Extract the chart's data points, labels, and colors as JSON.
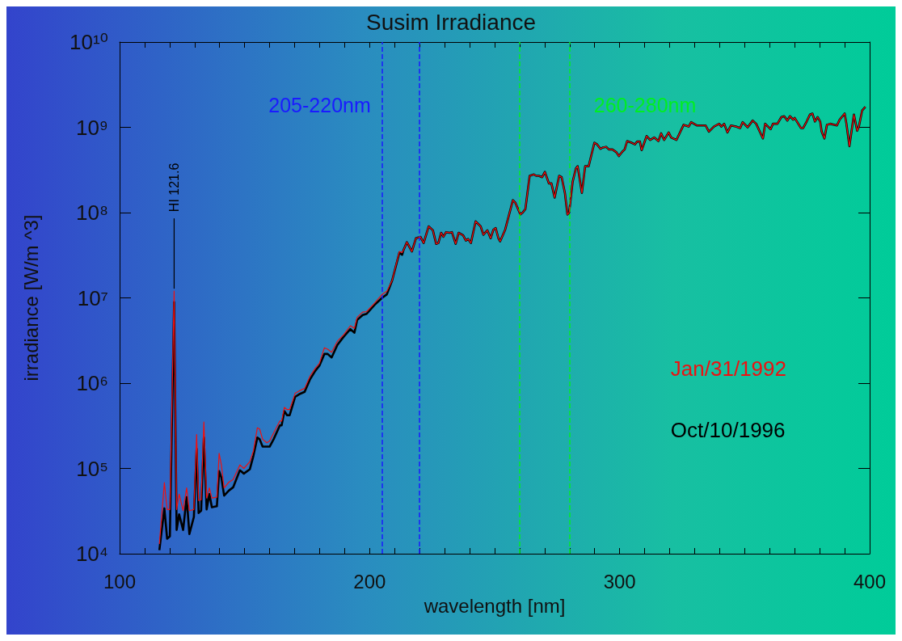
{
  "chart_data": {
    "type": "line",
    "title": "Susim Irradiance",
    "xlabel": "wavelength [nm]",
    "ylabel": "irradiance [W/m ^3]",
    "log": true,
    "legend": "right",
    "line_style": "solid",
    "grid": false,
    "xlim": [
      100,
      400
    ],
    "xticks": [
      100,
      {
        "value": 110,
        "label": null
      },
      {
        "value": 120,
        "label": null
      },
      {
        "value": 130,
        "label": null
      },
      {
        "value": 140,
        "label": null
      },
      {
        "value": 150,
        "label": null
      },
      {
        "value": 160,
        "label": null
      },
      {
        "value": 170,
        "label": null
      },
      {
        "value": 180,
        "label": null
      },
      {
        "value": 190,
        "label": null
      },
      200,
      {
        "value": 210,
        "label": null
      },
      {
        "value": 220,
        "label": null
      },
      {
        "value": 230,
        "label": null
      },
      {
        "value": 240,
        "label": null
      },
      {
        "value": 250,
        "label": null
      },
      {
        "value": 260,
        "label": null
      },
      {
        "value": 270,
        "label": null
      },
      {
        "value": 280,
        "label": null
      },
      {
        "value": 290,
        "label": null
      },
      300,
      {
        "value": 310,
        "label": null
      },
      {
        "value": 320,
        "label": null
      },
      {
        "value": 330,
        "label": null
      },
      {
        "value": 340,
        "label": null
      },
      {
        "value": 350,
        "label": null
      },
      {
        "value": 360,
        "label": null
      },
      {
        "value": 370,
        "label": null
      },
      {
        "value": 380,
        "label": null
      },
      {
        "value": 390,
        "label": null
      },
      400
    ],
    "ylim": [
      10000,
      10000000000
    ],
    "yticks": [
      {
        "value": 10000,
        "label": "10⁴"
      },
      {
        "value": 100000,
        "label": "10⁵"
      },
      {
        "value": 1000000,
        "label": "10⁶"
      },
      {
        "value": 10000000,
        "label": "10⁷"
      },
      {
        "value": 100000000,
        "label": "10⁸"
      },
      {
        "value": 1000000000,
        "label": "10⁹"
      },
      {
        "value": 10000000000,
        "label": "10¹⁰"
      }
    ],
    "ref_lines": [
      {
        "axis": "x",
        "value": 205,
        "label": "205-220nm",
        "color": "#1a1aff",
        "line_style": "dashed"
      },
      {
        "axis": "x",
        "value": 220,
        "label": null,
        "color": "#1a1aff",
        "line_style": "dashed"
      },
      {
        "axis": "x",
        "value": 260,
        "label": null,
        "color": "#00ee22",
        "line_style": "dashed"
      },
      {
        "axis": "x",
        "value": 280,
        "label": "260-280nm",
        "color": "#00ee22",
        "line_style": "dashed"
      }
    ],
    "annotations": [
      {
        "text": "HI 121.6",
        "x": 121.8,
        "y": 12000000
      }
    ],
    "series": [
      {
        "name": "Jan/31/1992",
        "color": "#ee1111",
        "x": [
          115.9,
          117.9,
          119.0,
          120.1,
          121.8,
          122.8,
          123.8,
          125.4,
          126.8,
          127.9,
          129.7,
          130.8,
          131.6,
          132.6,
          133.7,
          134.8,
          135.9,
          136.9,
          138.9,
          139.8,
          140.7,
          141.8,
          143.7,
          145.4,
          148.1,
          149.7,
          152.1,
          153.5,
          155.1,
          156.0,
          157.2,
          158.9,
          160.0,
          161.6,
          164.1,
          164.8,
          165.9,
          167.0,
          168.0,
          170.2,
          171.8,
          174.0,
          176.1,
          178.3,
          179.9,
          181.9,
          183.2,
          184.8,
          187.1,
          189.6,
          192.3,
          193.9,
          195.0,
          197.2,
          198.8,
          202.0,
          205.0,
          206.9,
          209.0,
          211.9,
          213.0,
          213.5,
          214.9,
          216.9,
          218.5,
          220.3,
          221.6,
          223.6,
          225.3,
          226.6,
          227.5,
          228.6,
          229.5,
          230.6,
          232.0,
          232.9,
          234.4,
          235.6,
          237.4,
          238.5,
          239.4,
          240.5,
          242.4,
          244.4,
          245.5,
          247.1,
          248.4,
          249.5,
          250.4,
          251.5,
          252.2,
          254.2,
          257.3,
          258.3,
          260.3,
          261.2,
          262.3,
          264.0,
          265.7,
          266.6,
          267.7,
          269.0,
          270.1,
          271.7,
          272.7,
          274.0,
          275.8,
          276.8,
          278.1,
          279.1,
          279.8,
          281.2,
          282.5,
          283.2,
          284.9,
          286.2,
          287.6,
          289.9,
          291.0,
          292.3,
          293.3,
          294.6,
          295.7,
          297.1,
          298.7,
          299.7,
          301.1,
          302.0,
          303.0,
          304.7,
          306.1,
          307.0,
          308.1,
          308.8,
          310.8,
          312.2,
          313.8,
          315.5,
          316.6,
          317.8,
          319.6,
          320.6,
          322.7,
          325.6,
          327.6,
          328.6,
          331.0,
          332.4,
          334.4,
          335.7,
          337.7,
          339.8,
          340.7,
          341.8,
          343.1,
          344.5,
          346.5,
          348.2,
          349.2,
          351.2,
          353.2,
          354.6,
          357.3,
          358.2,
          360.4,
          361.3,
          363.1,
          364.7,
          365.8,
          367.1,
          368.1,
          369.4,
          370.0,
          372.5,
          373.4,
          374.8,
          376.1,
          377.1,
          378.1,
          379.2,
          380.2,
          380.8,
          381.9,
          382.9,
          384.2,
          386.9,
          388.0,
          390.0,
          390.7,
          391.9,
          393.7,
          395.0,
          395.7,
          397.0,
          398.3
        ],
        "values": [
          13000,
          68000,
          33000,
          33000,
          12000000,
          33000,
          50000,
          32000,
          59000,
          32000,
          33000,
          250000,
          42000,
          43000,
          350000,
          45000,
          59000,
          45000,
          46000,
          150000,
          110000,
          59000,
          69000,
          74000,
          110000,
          100000,
          120000,
          160000,
          300000,
          290000,
          220000,
          200000,
          210000,
          260000,
          360000,
          360000,
          520000,
          490000,
          490000,
          760000,
          810000,
          870000,
          1200000,
          1500000,
          1700000,
          2600000,
          2500000,
          2300000,
          3100000,
          3700000,
          4700000,
          4400000,
          5900000,
          6800000,
          6900000,
          8700000,
          11000000,
          12000000,
          16000000,
          35000000,
          34000000,
          36000000.0,
          45000000.0,
          35000000.0,
          50000000.0,
          52000000.0,
          44000000.0,
          69000000.0,
          62000000.0,
          43000000.0,
          44000000.0,
          58000000.0,
          52000000.0,
          59000000.0,
          58000000.0,
          59000000.0,
          43000000.0,
          58000000.0,
          54000000.0,
          47000000.0,
          49000000.0,
          44000000.0,
          79000000.0,
          69000000.0,
          55000000.0,
          62000000.0,
          50000000.0,
          63000000.0,
          66000000.0,
          50000000.0,
          46000000.0,
          63000000.0,
          140000000.0,
          130000000.0,
          95000000.0,
          100000000.0,
          110000000.0,
          270000000.0,
          280000000.0,
          270000000.0,
          270000000.0,
          260000000.0,
          300000000.0,
          220000000.0,
          220000000.0,
          150000000.0,
          270000000.0,
          260000000.0,
          170000000.0,
          95000000.0,
          100000000.0,
          230000000.0,
          330000000.0,
          350000000.0,
          170000000.0,
          350000000.0,
          350000000.0,
          660000000.0,
          630000000.0,
          560000000.0,
          580000000.0,
          590000000.0,
          550000000.0,
          550000000.0,
          510000000.0,
          460000000.0,
          520000000.0,
          550000000.0,
          690000000.0,
          660000000.0,
          630000000.0,
          680000000.0,
          680000000.0,
          540000000.0,
          790000000.0,
          710000000.0,
          760000000.0,
          690000000.0,
          850000000.0,
          710000000.0,
          870000000.0,
          760000000.0,
          710000000.0,
          1070000000.0,
          1020000000.0,
          1150000000.0,
          1050000000.0,
          1050000000.0,
          1050000000.0,
          890000000.0,
          1020000000.0,
          1100000000.0,
          1020000000.0,
          1100000000.0,
          870000000.0,
          1050000000.0,
          1020000000.0,
          980000000.0,
          1150000000.0,
          1000000000.0,
          1200000000.0,
          1100000000.0,
          740000000.0,
          1100000000.0,
          950000000.0,
          1100000000.0,
          1100000000.0,
          1320000000.0,
          1350000000.0,
          1200000000.0,
          1350000000.0,
          1230000000.0,
          1290000000.0,
          980000000.0,
          980000000.0,
          1170000000.0,
          1410000000.0,
          1450000000.0,
          1170000000.0,
          1320000000.0,
          1170000000.0,
          890000000.0,
          740000000.0,
          1070000000.0,
          1100000000.0,
          1050000000.0,
          1230000000.0,
          1450000000.0,
          1100000000.0,
          600000000.0,
          1410000000.0,
          910000000.0,
          1020000000.0,
          1580000000.0,
          1740000000.0
        ]
      },
      {
        "name": "Oct/10/1996",
        "color": "#000000",
        "x": [
          115.9,
          117.9,
          119.0,
          120.1,
          121.8,
          122.8,
          123.8,
          125.4,
          126.8,
          127.9,
          129.7,
          130.8,
          131.6,
          132.6,
          133.7,
          134.8,
          135.9,
          136.9,
          138.9,
          139.8,
          140.7,
          141.8,
          143.7,
          145.4,
          148.1,
          149.7,
          152.1,
          153.5,
          155.1,
          156.0,
          157.2,
          158.9,
          160.0,
          161.6,
          164.1,
          164.8,
          165.9,
          167.0,
          168.0,
          170.2,
          171.8,
          174.0,
          176.1,
          178.3,
          179.9,
          181.9,
          183.2,
          184.8,
          187.1,
          189.6,
          192.3,
          193.9,
          195.0,
          197.2,
          198.8,
          202.0,
          205.0,
          206.9,
          209.0,
          211.9,
          213.0,
          213.5,
          214.9,
          216.9,
          218.5,
          220.3,
          221.6,
          223.6,
          225.3,
          226.6,
          227.5,
          228.6,
          229.5,
          230.6,
          232.0,
          232.9,
          234.4,
          235.6,
          237.4,
          238.5,
          239.4,
          240.5,
          242.4,
          244.4,
          245.5,
          247.1,
          248.4,
          249.5,
          250.4,
          251.5,
          252.2,
          254.2,
          257.3,
          258.3,
          260.3,
          261.2,
          262.3,
          264.0,
          265.7,
          266.6,
          267.7,
          269.0,
          270.1,
          271.7,
          272.7,
          274.0,
          275.8,
          276.8,
          278.1,
          279.1,
          279.8,
          281.2,
          282.5,
          283.2,
          284.9,
          286.2,
          287.6,
          289.9,
          291.0,
          292.3,
          293.3,
          294.6,
          295.7,
          297.1,
          298.7,
          299.7,
          301.1,
          302.0,
          303.0,
          304.7,
          306.1,
          307.0,
          308.1,
          308.8,
          310.8,
          312.2,
          313.8,
          315.5,
          316.6,
          317.8,
          319.6,
          320.6,
          322.7,
          325.6,
          327.6,
          328.6,
          331.0,
          332.4,
          334.4,
          335.7,
          337.7,
          339.8,
          340.7,
          341.8,
          343.1,
          344.5,
          346.5,
          348.2,
          349.2,
          351.2,
          353.2,
          354.6,
          357.3,
          358.2,
          360.4,
          361.3,
          363.1,
          364.7,
          365.8,
          367.1,
          368.1,
          369.4,
          370.0,
          372.5,
          373.4,
          374.8,
          376.1,
          377.1,
          378.1,
          379.2,
          380.2,
          380.8,
          381.9,
          382.9,
          384.2,
          386.9,
          388.0,
          390.0,
          390.7,
          391.9,
          393.7,
          395.0,
          395.7,
          397.0,
          398.3
        ],
        "values": [
          11000,
          34000,
          15000,
          16000,
          8900000,
          19000,
          29000,
          19000,
          46000,
          17000,
          27000,
          170000,
          30000,
          32000,
          230000,
          33000,
          50000,
          35000,
          36000,
          93000,
          78000,
          48000,
          55000,
          60000,
          95000,
          87000,
          98000,
          140000,
          230000,
          220000,
          180000,
          180000,
          180000,
          220000,
          320000,
          320000,
          470000,
          420000,
          420000,
          690000,
          740000,
          790000,
          1100000,
          1400000,
          1600000,
          2200000,
          2200000,
          2000000,
          2800000,
          3500000,
          4300000,
          3900000,
          5500000,
          6300000,
          6500000,
          8300000,
          10000000,
          11000000,
          16000000,
          34000000,
          32000000,
          36000000.0,
          45000000.0,
          35000000.0,
          50000000.0,
          52000000.0,
          44000000.0,
          69000000.0,
          62000000.0,
          43000000.0,
          44000000.0,
          58000000.0,
          52000000.0,
          59000000.0,
          58000000.0,
          59000000.0,
          43000000.0,
          58000000.0,
          54000000.0,
          47000000.0,
          49000000.0,
          44000000.0,
          79000000.0,
          69000000.0,
          55000000.0,
          62000000.0,
          50000000.0,
          63000000.0,
          66000000.0,
          50000000.0,
          46000000.0,
          63000000.0,
          140000000.0,
          130000000.0,
          95000000.0,
          100000000.0,
          110000000.0,
          270000000.0,
          280000000.0,
          270000000.0,
          270000000.0,
          260000000.0,
          300000000.0,
          220000000.0,
          220000000.0,
          150000000.0,
          270000000.0,
          260000000.0,
          170000000.0,
          95000000.0,
          100000000.0,
          230000000.0,
          330000000.0,
          350000000.0,
          170000000.0,
          350000000.0,
          350000000.0,
          660000000.0,
          630000000.0,
          560000000.0,
          580000000.0,
          590000000.0,
          550000000.0,
          550000000.0,
          510000000.0,
          460000000.0,
          520000000.0,
          550000000.0,
          690000000.0,
          660000000.0,
          630000000.0,
          680000000.0,
          680000000.0,
          540000000.0,
          790000000.0,
          710000000.0,
          760000000.0,
          690000000.0,
          850000000.0,
          710000000.0,
          870000000.0,
          760000000.0,
          710000000.0,
          1070000000.0,
          1020000000.0,
          1150000000.0,
          1050000000.0,
          1050000000.0,
          1050000000.0,
          890000000.0,
          1020000000.0,
          1100000000.0,
          1020000000.0,
          1100000000.0,
          870000000.0,
          1050000000.0,
          1020000000.0,
          980000000.0,
          1150000000.0,
          1000000000.0,
          1200000000.0,
          1100000000.0,
          740000000.0,
          1100000000.0,
          950000000.0,
          1100000000.0,
          1100000000.0,
          1320000000.0,
          1350000000.0,
          1200000000.0,
          1350000000.0,
          1230000000.0,
          1290000000.0,
          980000000.0,
          980000000.0,
          1170000000.0,
          1410000000.0,
          1450000000.0,
          1170000000.0,
          1320000000.0,
          1170000000.0,
          890000000.0,
          740000000.0,
          1070000000.0,
          1100000000.0,
          1050000000.0,
          1230000000.0,
          1450000000.0,
          1100000000.0,
          600000000.0,
          1410000000.0,
          910000000.0,
          1020000000.0,
          1580000000.0,
          1740000000.0
        ]
      }
    ]
  }
}
